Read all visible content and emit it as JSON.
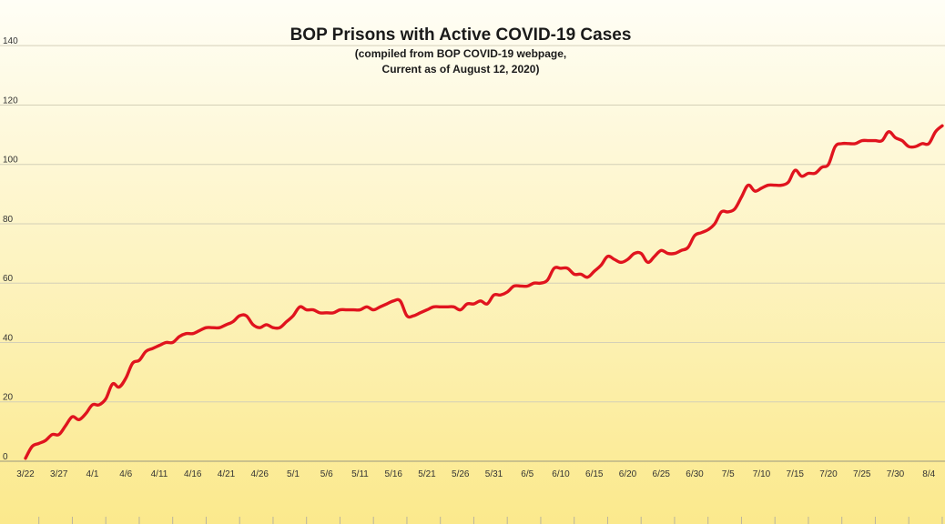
{
  "chart_data": {
    "type": "line",
    "title": "BOP Prisons with Active COVID-19 Cases",
    "subtitle_lines": [
      "(compiled from BOP COVID-19 webpage,",
      "Current as of August 12, 2020)"
    ],
    "xlabel": "",
    "ylabel": "",
    "ylim": [
      0,
      140
    ],
    "yticks": [
      0,
      20,
      40,
      60,
      80,
      100,
      120,
      140
    ],
    "xtick_labels": [
      "3/22",
      "3/27",
      "4/1",
      "4/6",
      "4/11",
      "4/16",
      "4/21",
      "4/26",
      "5/1",
      "5/6",
      "5/11",
      "5/16",
      "5/21",
      "5/26",
      "5/31",
      "6/5",
      "6/10",
      "6/15",
      "6/20",
      "6/25",
      "6/30",
      "7/5",
      "7/10",
      "7/15",
      "7/20",
      "7/25",
      "7/30",
      "8/4"
    ],
    "grid": true,
    "legend": "none",
    "colors": {
      "line": "#e0141e",
      "background_top": "#fffef6",
      "background_bottom": "#fbe98c",
      "gridline": "#d4d0b8"
    },
    "series": [
      {
        "values": [
          1,
          5,
          6,
          7,
          9,
          9,
          12,
          15,
          14,
          16,
          19,
          19,
          21,
          26,
          25,
          28,
          33,
          34,
          37,
          38,
          39,
          40,
          40,
          42,
          43,
          43,
          44,
          45,
          45,
          45,
          46,
          47,
          49,
          49,
          46,
          45,
          46,
          45,
          45,
          47,
          49,
          52,
          51,
          51,
          50,
          50,
          50,
          51,
          51,
          51,
          51,
          52,
          51,
          52,
          53,
          54,
          54,
          49,
          49,
          50,
          51,
          52,
          52,
          52,
          52,
          51,
          53,
          53,
          54,
          53,
          56,
          56,
          57,
          59,
          59,
          59,
          60,
          60,
          61,
          65,
          65,
          65,
          63,
          63,
          62,
          64,
          66,
          69,
          68,
          67,
          68,
          70,
          70,
          67,
          69,
          71,
          70,
          70,
          71,
          72,
          76,
          77,
          78,
          80,
          84,
          84,
          85,
          89,
          93,
          91,
          92,
          93,
          93,
          93,
          94,
          98,
          96,
          97,
          97,
          99,
          100,
          106,
          107,
          107,
          107,
          108,
          108,
          108,
          108,
          111,
          109,
          108,
          106,
          106,
          107,
          107,
          111,
          113
        ]
      }
    ]
  }
}
